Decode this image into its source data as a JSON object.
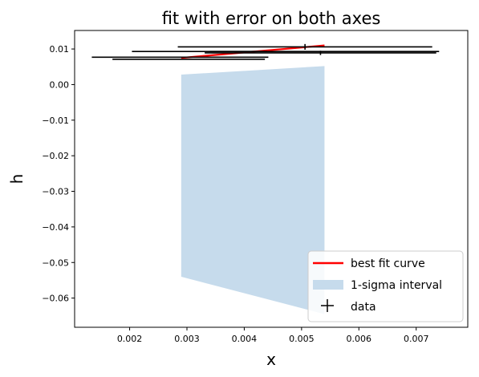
{
  "chart_data": {
    "type": "scatter",
    "title": "fit with error on both axes",
    "xlabel": "x",
    "ylabel": "h",
    "xlim": [
      0.00104,
      0.0079
    ],
    "ylim": [
      -0.0682,
      0.0152
    ],
    "xticks": [
      0.002,
      0.003,
      0.004,
      0.005,
      0.006,
      0.007
    ],
    "xtick_labels": [
      "0.002",
      "0.003",
      "0.004",
      "0.005",
      "0.006",
      "0.007"
    ],
    "yticks": [
      0.01,
      0.0,
      -0.01,
      -0.02,
      -0.03,
      -0.04,
      -0.05,
      -0.06
    ],
    "ytick_labels": [
      "0.01",
      "0.00",
      "−0.01",
      "−0.02",
      "−0.03",
      "−0.04",
      "−0.05",
      "−0.06"
    ],
    "legend_position": "lower right",
    "grid": false,
    "series": [
      {
        "name": "best fit curve",
        "kind": "line",
        "color": "#ff0000",
        "x": [
          0.0029,
          0.0054
        ],
        "y": [
          0.0075,
          0.011
        ]
      },
      {
        "name": "1-sigma interval",
        "kind": "band",
        "color": "#c6dbec",
        "x": [
          0.0029,
          0.0054
        ],
        "upper": [
          0.0028,
          0.0052
        ],
        "lower": [
          -0.054,
          -0.0645
        ]
      },
      {
        "name": "data",
        "kind": "errorbar",
        "color": "#000000",
        "points": [
          {
            "x": 0.00288,
            "y": 0.0077,
            "xerr": 0.00154,
            "yerr": 0.0
          },
          {
            "x": 0.00303,
            "y": 0.0071,
            "xerr": 0.00133,
            "yerr": 0.0
          },
          {
            "x": 0.00322,
            "y": 0.0093,
            "xerr": 0.00118,
            "yerr": 0.0
          },
          {
            "x": 0.00506,
            "y": 0.0106,
            "xerr": 0.00222,
            "yerr": 0.0008
          },
          {
            "x": 0.00533,
            "y": 0.0089,
            "xerr": 0.00202,
            "yerr": 0.0006
          },
          {
            "x": 0.0054,
            "y": 0.0093,
            "xerr": 0.002,
            "yerr": 0.0
          }
        ]
      }
    ]
  }
}
